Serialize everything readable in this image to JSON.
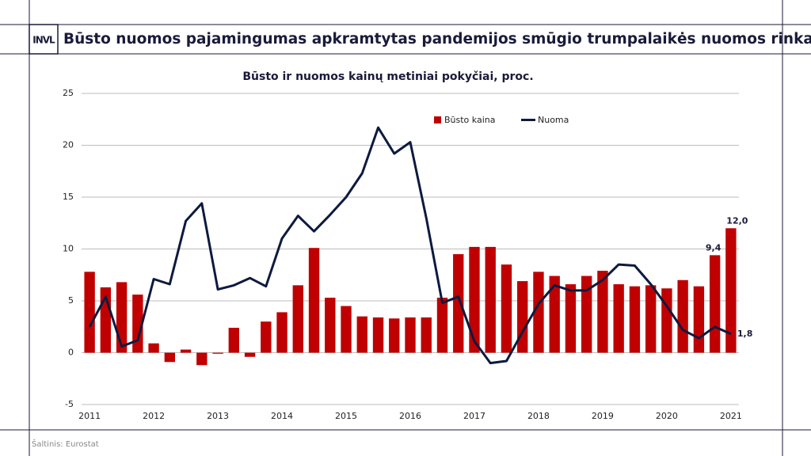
{
  "header": {
    "logo": "INVL",
    "title": "Būsto nuomos pajamingumas apkramtytas pandemijos smūgio trumpalaikės nuomos rinkai"
  },
  "chart_data": {
    "type": "bar",
    "title": "Būsto ir nuomos kainų metiniai pokyčiai, proc.",
    "categories": [
      "2011",
      null,
      null,
      null,
      "2012",
      null,
      null,
      null,
      "2013",
      null,
      null,
      null,
      "2014",
      null,
      null,
      null,
      "2015",
      null,
      null,
      null,
      "2016",
      null,
      null,
      null,
      "2017",
      null,
      null,
      null,
      "2018",
      null,
      null,
      null,
      "2019",
      null,
      null,
      null,
      "2020",
      null,
      null,
      null,
      "2021"
    ],
    "series": [
      {
        "name": "Būsto kaina",
        "type": "bar",
        "color": "#c00000",
        "values": [
          7.8,
          6.3,
          6.8,
          5.6,
          0.9,
          -0.9,
          0.3,
          -1.2,
          -0.1,
          2.4,
          -0.4,
          3.0,
          3.9,
          6.5,
          10.1,
          5.3,
          4.5,
          3.5,
          3.4,
          3.3,
          3.4,
          3.4,
          5.3,
          9.5,
          10.2,
          10.2,
          8.5,
          6.9,
          7.8,
          7.4,
          6.6,
          7.4,
          7.9,
          6.6,
          6.4,
          6.5,
          6.2,
          7.0,
          6.4,
          9.4,
          12.0
        ],
        "value_labels": [
          null,
          null,
          null,
          null,
          null,
          null,
          null,
          null,
          null,
          null,
          null,
          null,
          null,
          null,
          null,
          null,
          null,
          null,
          null,
          null,
          null,
          null,
          null,
          null,
          null,
          null,
          null,
          null,
          null,
          null,
          null,
          null,
          null,
          null,
          null,
          null,
          null,
          null,
          null,
          "9,4",
          "12,0"
        ]
      },
      {
        "name": "Nuoma",
        "type": "line",
        "color": "#0d1a3f",
        "values": [
          2.5,
          5.4,
          0.6,
          1.2,
          7.1,
          6.6,
          12.7,
          14.4,
          6.1,
          6.5,
          7.2,
          6.4,
          11.0,
          13.2,
          11.7,
          13.3,
          15.0,
          17.3,
          21.7,
          19.2,
          20.3,
          13.0,
          4.8,
          5.4,
          1.1,
          -1.0,
          -0.8,
          2.0,
          4.7,
          6.5,
          6.0,
          6.0,
          7.0,
          8.5,
          8.4,
          6.6,
          4.5,
          2.2,
          1.4,
          2.5,
          1.8
        ],
        "value_labels": [
          null,
          null,
          null,
          null,
          null,
          null,
          null,
          null,
          null,
          null,
          null,
          null,
          null,
          null,
          null,
          null,
          null,
          null,
          null,
          null,
          null,
          null,
          null,
          null,
          null,
          null,
          null,
          null,
          null,
          null,
          null,
          null,
          null,
          null,
          null,
          null,
          null,
          null,
          null,
          null,
          "1,8"
        ]
      }
    ],
    "ylim": [
      -5,
      25
    ],
    "yticks": [
      -5,
      0,
      5,
      10,
      15,
      20,
      25
    ],
    "grid": true,
    "legend": "top-right"
  },
  "source": "Šaltinis: Eurostat"
}
